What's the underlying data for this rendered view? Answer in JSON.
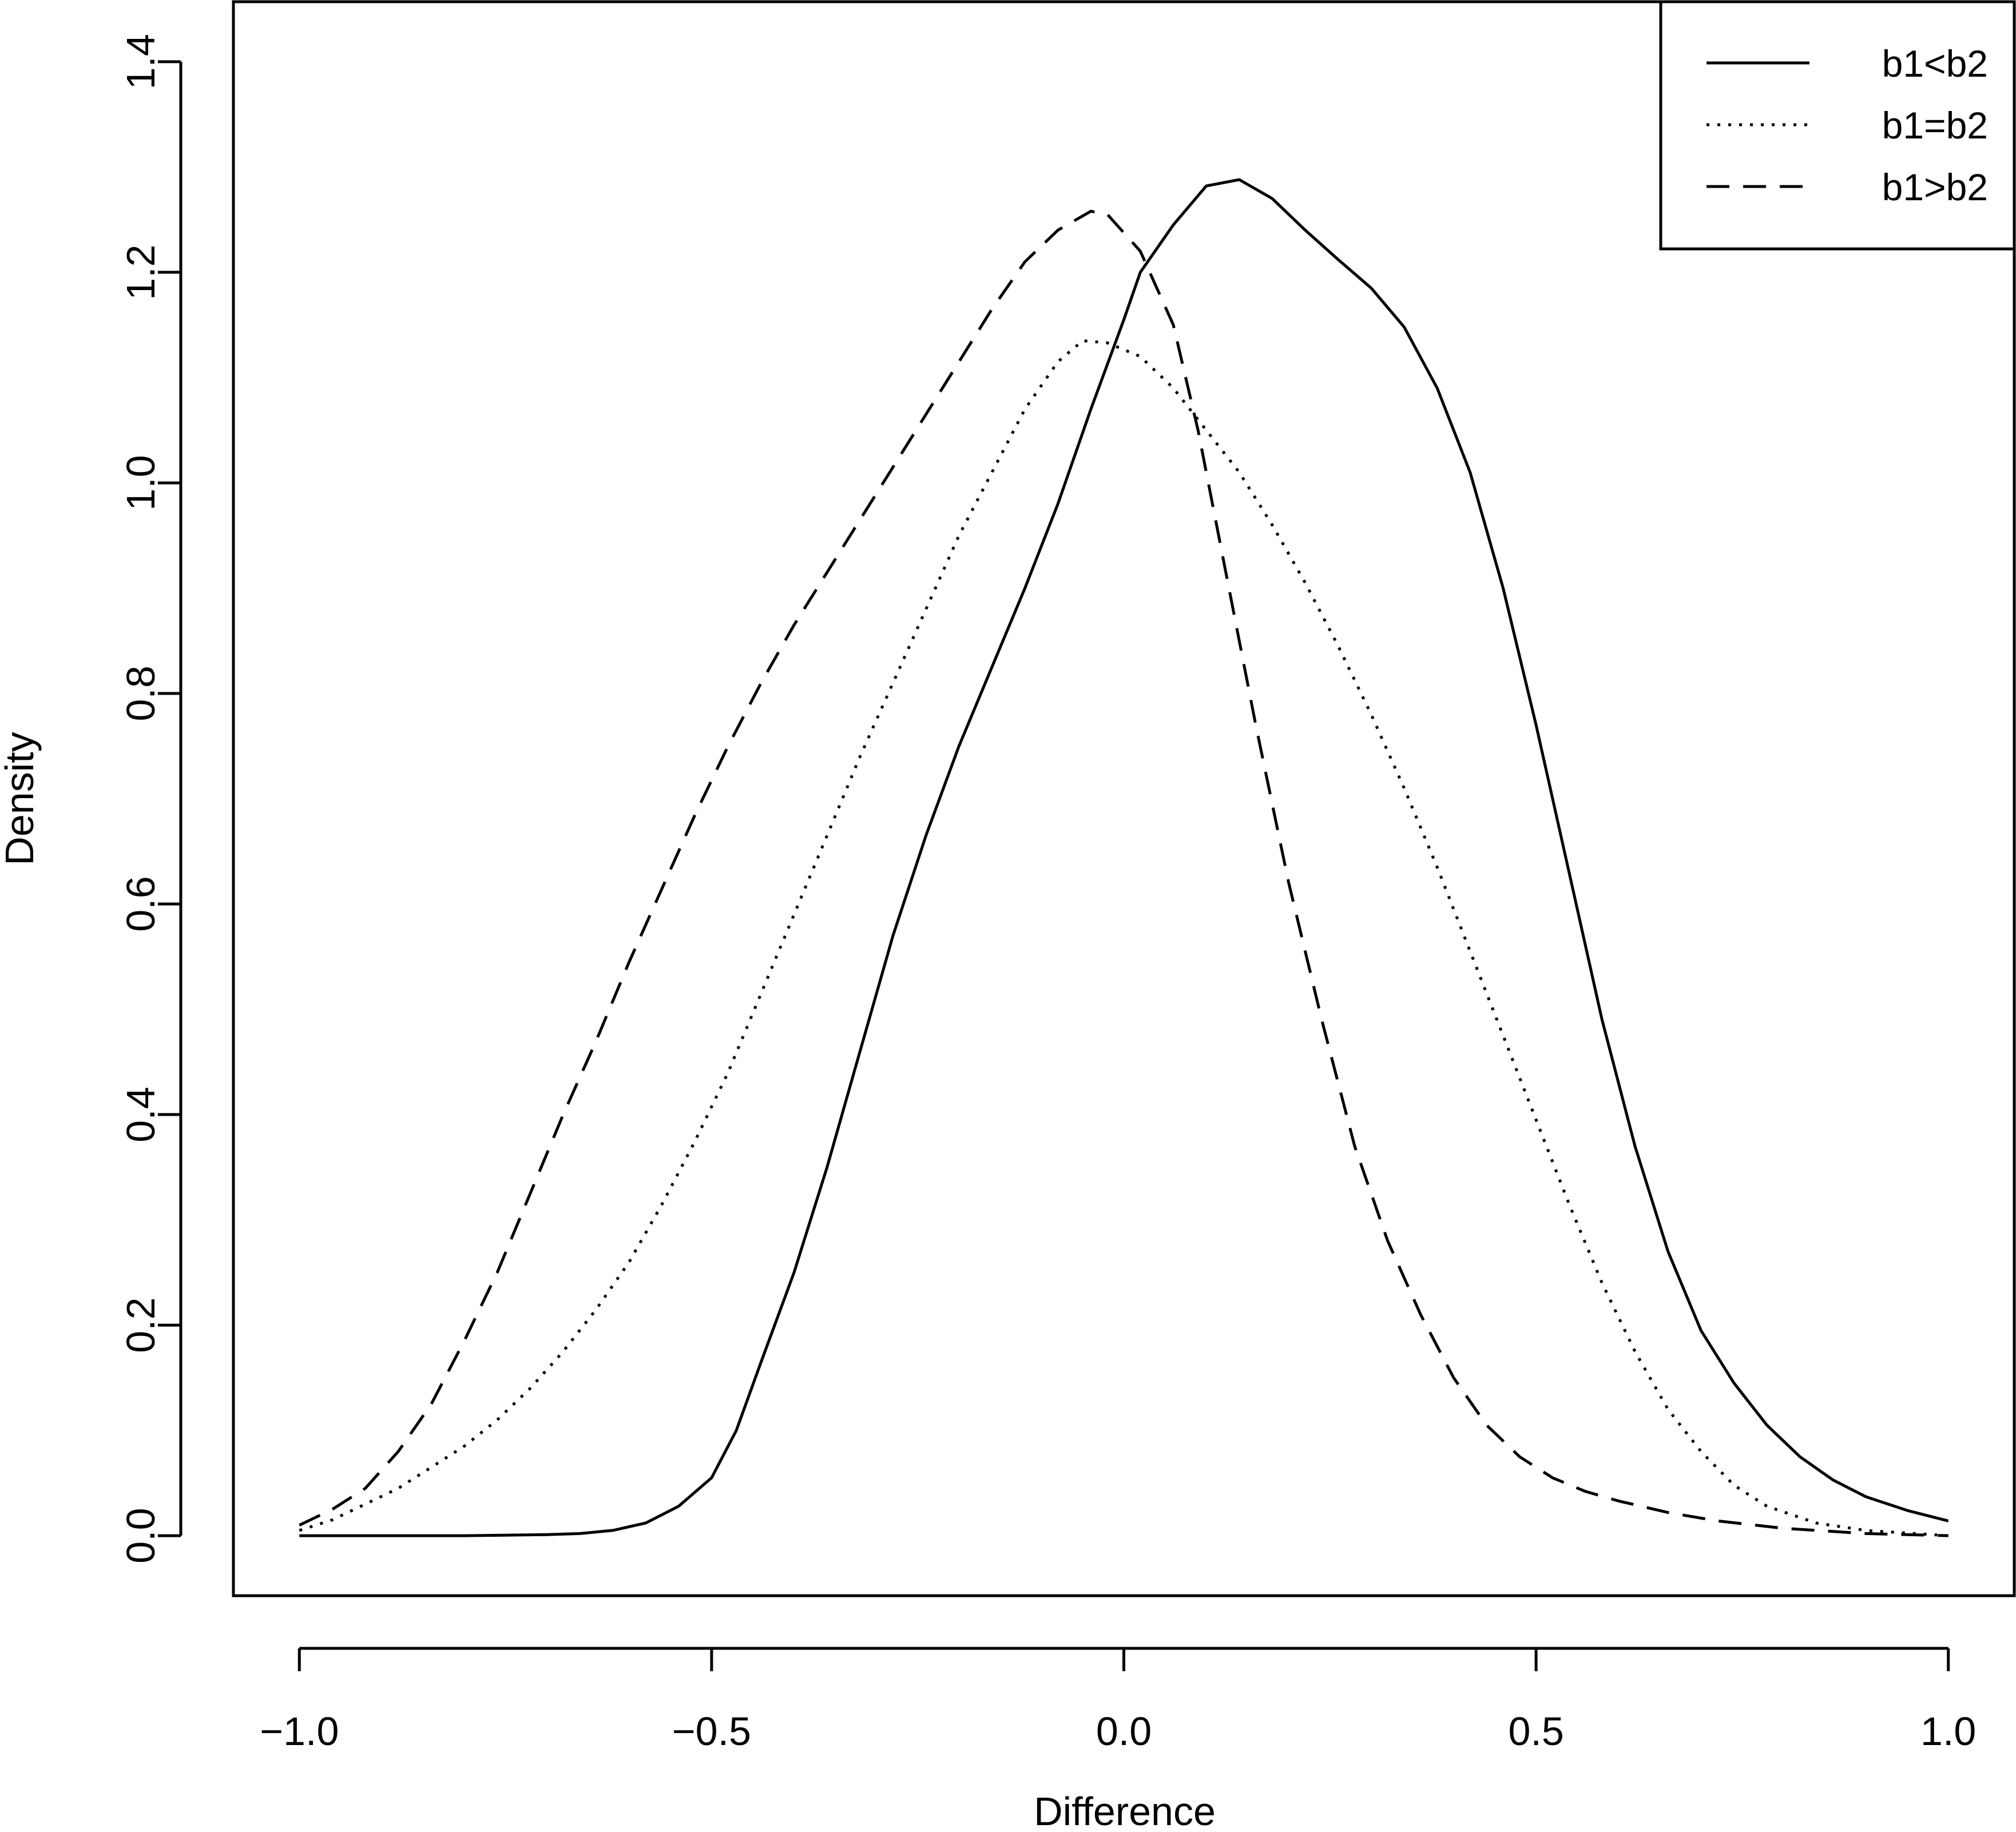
{
  "chart_data": {
    "type": "line",
    "title": "",
    "xlabel": "Difference",
    "ylabel": "Density",
    "xlim": [
      -1.08,
      1.08
    ],
    "ylim": [
      -0.057,
      1.457
    ],
    "x_ticks": [
      -1.0,
      -0.5,
      0.0,
      0.5,
      1.0
    ],
    "x_tick_labels": [
      "−1.0",
      "−0.5",
      "0.0",
      "0.5",
      "1.0"
    ],
    "y_ticks": [
      0.0,
      0.2,
      0.4,
      0.6,
      0.8,
      1.0,
      1.2,
      1.4
    ],
    "y_tick_labels": [
      "0.0",
      "0.2",
      "0.4",
      "0.6",
      "0.8",
      "1.0",
      "1.2",
      "1.4"
    ],
    "grid": false,
    "legend": {
      "position": "top-right"
    },
    "series": [
      {
        "name": "b1<b2",
        "style": "solid",
        "color": "#000000",
        "points": [
          [
            -1.0,
            0.0
          ],
          [
            -0.9,
            0.0
          ],
          [
            -0.8,
            0.0
          ],
          [
            -0.7,
            0.001
          ],
          [
            -0.66,
            0.002
          ],
          [
            -0.62,
            0.005
          ],
          [
            -0.58,
            0.012
          ],
          [
            -0.54,
            0.028
          ],
          [
            -0.5,
            0.055
          ],
          [
            -0.47,
            0.1
          ],
          [
            -0.44,
            0.165
          ],
          [
            -0.4,
            0.25
          ],
          [
            -0.36,
            0.35
          ],
          [
            -0.32,
            0.46
          ],
          [
            -0.28,
            0.57
          ],
          [
            -0.24,
            0.665
          ],
          [
            -0.2,
            0.75
          ],
          [
            -0.16,
            0.825
          ],
          [
            -0.12,
            0.9
          ],
          [
            -0.08,
            0.98
          ],
          [
            -0.04,
            1.07
          ],
          [
            0.0,
            1.155
          ],
          [
            0.02,
            1.2
          ],
          [
            0.06,
            1.245
          ],
          [
            0.1,
            1.282
          ],
          [
            0.14,
            1.288
          ],
          [
            0.18,
            1.27
          ],
          [
            0.22,
            1.24
          ],
          [
            0.26,
            1.212
          ],
          [
            0.3,
            1.185
          ],
          [
            0.34,
            1.148
          ],
          [
            0.38,
            1.09
          ],
          [
            0.42,
            1.01
          ],
          [
            0.46,
            0.9
          ],
          [
            0.5,
            0.77
          ],
          [
            0.54,
            0.63
          ],
          [
            0.58,
            0.49
          ],
          [
            0.62,
            0.37
          ],
          [
            0.66,
            0.27
          ],
          [
            0.7,
            0.195
          ],
          [
            0.74,
            0.145
          ],
          [
            0.78,
            0.105
          ],
          [
            0.82,
            0.075
          ],
          [
            0.86,
            0.053
          ],
          [
            0.9,
            0.037
          ],
          [
            0.95,
            0.024
          ],
          [
            1.0,
            0.014
          ]
        ]
      },
      {
        "name": "b1=b2",
        "style": "dotted",
        "color": "#000000",
        "points": [
          [
            -1.0,
            0.005
          ],
          [
            -0.96,
            0.015
          ],
          [
            -0.92,
            0.03
          ],
          [
            -0.88,
            0.045
          ],
          [
            -0.84,
            0.065
          ],
          [
            -0.8,
            0.085
          ],
          [
            -0.76,
            0.11
          ],
          [
            -0.72,
            0.14
          ],
          [
            -0.68,
            0.175
          ],
          [
            -0.64,
            0.215
          ],
          [
            -0.6,
            0.26
          ],
          [
            -0.56,
            0.315
          ],
          [
            -0.52,
            0.375
          ],
          [
            -0.48,
            0.44
          ],
          [
            -0.44,
            0.515
          ],
          [
            -0.4,
            0.59
          ],
          [
            -0.36,
            0.665
          ],
          [
            -0.32,
            0.74
          ],
          [
            -0.28,
            0.81
          ],
          [
            -0.24,
            0.88
          ],
          [
            -0.2,
            0.95
          ],
          [
            -0.16,
            1.01
          ],
          [
            -0.12,
            1.07
          ],
          [
            -0.08,
            1.115
          ],
          [
            -0.05,
            1.135
          ],
          [
            -0.02,
            1.133
          ],
          [
            0.02,
            1.12
          ],
          [
            0.06,
            1.09
          ],
          [
            0.1,
            1.05
          ],
          [
            0.14,
            1.01
          ],
          [
            0.18,
            0.96
          ],
          [
            0.22,
            0.905
          ],
          [
            0.26,
            0.845
          ],
          [
            0.3,
            0.78
          ],
          [
            0.34,
            0.71
          ],
          [
            0.38,
            0.635
          ],
          [
            0.42,
            0.555
          ],
          [
            0.46,
            0.475
          ],
          [
            0.5,
            0.395
          ],
          [
            0.54,
            0.315
          ],
          [
            0.58,
            0.24
          ],
          [
            0.62,
            0.175
          ],
          [
            0.66,
            0.12
          ],
          [
            0.7,
            0.08
          ],
          [
            0.74,
            0.048
          ],
          [
            0.78,
            0.028
          ],
          [
            0.84,
            0.012
          ],
          [
            0.9,
            0.005
          ],
          [
            1.0,
            0.0
          ]
        ]
      },
      {
        "name": "b1>b2",
        "style": "dashed",
        "color": "#000000",
        "points": [
          [
            -1.0,
            0.01
          ],
          [
            -0.96,
            0.025
          ],
          [
            -0.92,
            0.045
          ],
          [
            -0.88,
            0.08
          ],
          [
            -0.84,
            0.125
          ],
          [
            -0.8,
            0.185
          ],
          [
            -0.76,
            0.25
          ],
          [
            -0.72,
            0.325
          ],
          [
            -0.68,
            0.4
          ],
          [
            -0.64,
            0.47
          ],
          [
            -0.6,
            0.545
          ],
          [
            -0.56,
            0.615
          ],
          [
            -0.52,
            0.685
          ],
          [
            -0.48,
            0.75
          ],
          [
            -0.44,
            0.81
          ],
          [
            -0.4,
            0.865
          ],
          [
            -0.36,
            0.915
          ],
          [
            -0.32,
            0.965
          ],
          [
            -0.28,
            1.015
          ],
          [
            -0.24,
            1.065
          ],
          [
            -0.2,
            1.115
          ],
          [
            -0.16,
            1.165
          ],
          [
            -0.12,
            1.21
          ],
          [
            -0.08,
            1.24
          ],
          [
            -0.04,
            1.258
          ],
          [
            -0.02,
            1.255
          ],
          [
            0.02,
            1.22
          ],
          [
            0.06,
            1.15
          ],
          [
            0.09,
            1.05
          ],
          [
            0.12,
            0.93
          ],
          [
            0.16,
            0.77
          ],
          [
            0.2,
            0.62
          ],
          [
            0.24,
            0.49
          ],
          [
            0.28,
            0.37
          ],
          [
            0.32,
            0.28
          ],
          [
            0.36,
            0.21
          ],
          [
            0.4,
            0.15
          ],
          [
            0.44,
            0.105
          ],
          [
            0.48,
            0.075
          ],
          [
            0.52,
            0.055
          ],
          [
            0.56,
            0.042
          ],
          [
            0.6,
            0.033
          ],
          [
            0.66,
            0.022
          ],
          [
            0.72,
            0.014
          ],
          [
            0.8,
            0.007
          ],
          [
            0.9,
            0.002
          ],
          [
            1.0,
            0.0
          ]
        ]
      }
    ]
  }
}
